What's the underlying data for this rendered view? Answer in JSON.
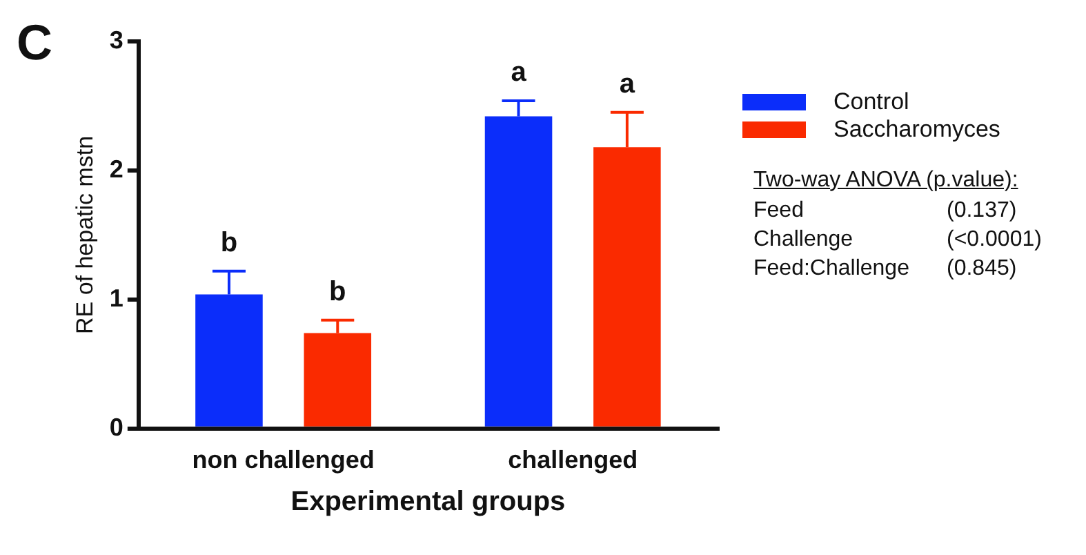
{
  "chart_data": {
    "type": "bar",
    "xlabel": "Experimental groups",
    "ylabel": "RE of hepatic mstn",
    "categories": [
      "non challenged",
      "challenged"
    ],
    "series": [
      {
        "name": "Control",
        "color": "#0b2dfa",
        "values": [
          1.04,
          2.42
        ],
        "errors": [
          [
            1.04,
            1.22
          ],
          [
            2.42,
            2.54
          ]
        ]
      },
      {
        "name": "Saccharomyces",
        "color": "#fa2a00",
        "values": [
          0.74,
          2.18
        ],
        "errors": [
          [
            0.74,
            0.84
          ],
          [
            2.18,
            2.45
          ]
        ]
      }
    ],
    "ylim": [
      0,
      3
    ],
    "yticks": [
      0,
      1,
      2,
      3
    ],
    "grid": false,
    "legend": "top right",
    "annotations": [
      "C",
      "Two-way ANOVA (p.value):",
      "Feed (0.137)",
      "Challenge (<0.0001)",
      "Feed:Challenge (0.845)",
      "b",
      "b",
      "a",
      "a"
    ]
  }
}
